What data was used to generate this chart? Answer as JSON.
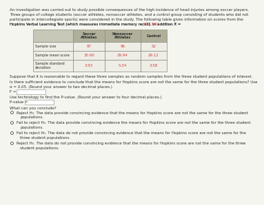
{
  "intro_lines": [
    "An investigation was carried out to study possible consequences of the high incidence of head injuries among soccer players.",
    "Three groups of college students (soccer athletes, nonsoccer athletes, and a control group consisting of students who did not",
    "participate in intercollegiate sports) were considered in the study. The following table gives information on scores from the",
    "Hopkins Verbal Learning Test (which measures immediate memory recall). In addition X̅ = 30.1140."
  ],
  "table_headers": [
    "Soccer\nAthletes",
    "Nonsoccer\nAthletes",
    "Control"
  ],
  "table_rows": [
    [
      "Sample size",
      "87",
      "96",
      "52"
    ],
    [
      "Sample mean score",
      "30.90",
      "29.94",
      "29.12"
    ],
    [
      "Sample standard\ndeviation",
      "3.93",
      "5.34",
      "3.58"
    ]
  ],
  "text_color_red": "#d04040",
  "text_color_black": "#2b2b2b",
  "bg_color": "#f5f5f0",
  "table_header_bg": "#b0b09a",
  "table_row_bg": "#eeeee6",
  "table_border": "#888880",
  "suppose_text": "Suppose that it is reasonable to regard these three samples as random samples from the three student populations of interest.",
  "question_line1": "Is there sufficient evidence to conclude that the means for Hopkins score are not the same for the three student populations? Use",
  "question_line2": "α = 0.05. (Round your answer to two decimal places.)",
  "f_label": "F =",
  "pvalue_label_text": "Use technology to find the P-value. (Round your answer to four decimal places.)",
  "pvalue_label": "P-value =",
  "conclude_text": "What can you conclude?",
  "options": [
    [
      "Reject H₀. The data provide convincing evidence that the means for Hopkins score are not the same for the three student",
      "populations."
    ],
    [
      "Fail to reject H₀. The data provide convincing evidence the means for Hopkins score are not the same for the three student",
      "populations."
    ],
    [
      "Fail to reject H₀. The data do not provide convincing evidence that the means for Hopkins score are not the same for the",
      "three student populations."
    ],
    [
      "Reject H₀. The data do not provide convincing evidence that the means for Hopkins score are not the same for the three",
      "student populations."
    ]
  ]
}
